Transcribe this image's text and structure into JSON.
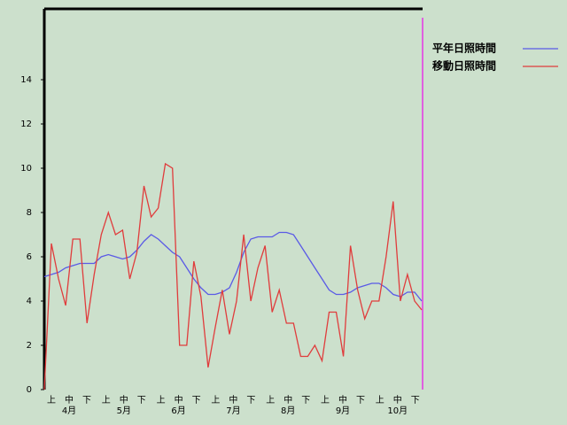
{
  "chart_data": {
    "type": "line",
    "period_labels": [
      "上",
      "中",
      "下",
      "上",
      "中",
      "下",
      "上",
      "中",
      "下",
      "上",
      "中",
      "下",
      "上",
      "中",
      "下",
      "上",
      "中",
      "下",
      "上",
      "中",
      "下"
    ],
    "month_labels": [
      "4月",
      "5月",
      "6月",
      "7月",
      "8月",
      "9月",
      "10月"
    ],
    "ylim": [
      0,
      17.2
    ],
    "yticks": [
      0,
      2,
      4,
      6,
      8,
      10,
      12,
      14
    ],
    "legend": "top-right",
    "series": [
      {
        "name": "平年日照時間",
        "color": "#5a5ae6",
        "values": [
          5.1,
          5.2,
          5.3,
          5.5,
          5.6,
          5.7,
          5.7,
          5.7,
          6.0,
          6.1,
          6.0,
          5.9,
          6.0,
          6.3,
          6.7,
          7.0,
          6.8,
          6.5,
          6.2,
          6.0,
          5.5,
          5.0,
          4.6,
          4.3,
          4.3,
          4.4,
          4.6,
          5.3,
          6.2,
          6.8,
          6.9,
          6.9,
          6.9,
          7.1,
          7.1,
          7.0,
          6.5,
          6.0,
          5.5,
          5.0,
          4.5,
          4.3,
          4.3,
          4.4,
          4.6,
          4.7,
          4.8,
          4.8,
          4.6,
          4.3,
          4.2,
          4.4,
          4.4,
          4.0
        ]
      },
      {
        "name": "移動日照時間",
        "color": "#e03c3c",
        "values": [
          0,
          6.6,
          5.0,
          3.8,
          6.8,
          6.8,
          3.0,
          5.2,
          7.0,
          8.0,
          7.0,
          7.2,
          5.0,
          6.2,
          9.2,
          7.8,
          8.2,
          10.2,
          10.0,
          2.0,
          2.0,
          5.8,
          4.2,
          1.0,
          2.8,
          4.5,
          2.5,
          4.0,
          7.0,
          4.0,
          5.5,
          6.5,
          3.5,
          4.5,
          3.0,
          3.0,
          1.5,
          1.5,
          2.0,
          1.3,
          3.5,
          3.5,
          1.5,
          6.5,
          4.5,
          3.2,
          4.0,
          4.0,
          6.0,
          8.5,
          4.0,
          5.2,
          4.0,
          3.6
        ]
      }
    ]
  }
}
